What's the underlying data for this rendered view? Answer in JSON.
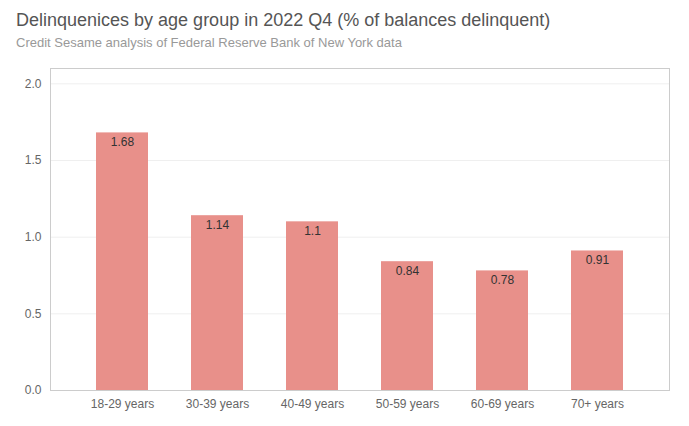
{
  "chart_data": {
    "type": "bar",
    "title": "Delinquenices by age group in 2022 Q4 (% of balances delinquent)",
    "subtitle": "Credit Sesame analysis of Federal Reserve Bank of New York data",
    "categories": [
      "18-29 years",
      "30-39 years",
      "40-49 years",
      "50-59 years",
      "60-69 years",
      "70+ years"
    ],
    "values": [
      1.68,
      1.14,
      1.1,
      0.84,
      0.78,
      0.91
    ],
    "color": "#e8908a",
    "ylim": [
      0,
      2.1
    ],
    "yticks": [
      {
        "value": 0.0,
        "label": "0.0"
      },
      {
        "value": 0.5,
        "label": "0.5"
      },
      {
        "value": 1.0,
        "label": "1.0"
      },
      {
        "value": 1.5,
        "label": "1.5"
      },
      {
        "value": 2.0,
        "label": "2.0"
      }
    ],
    "grid": true,
    "data_labels": true
  }
}
